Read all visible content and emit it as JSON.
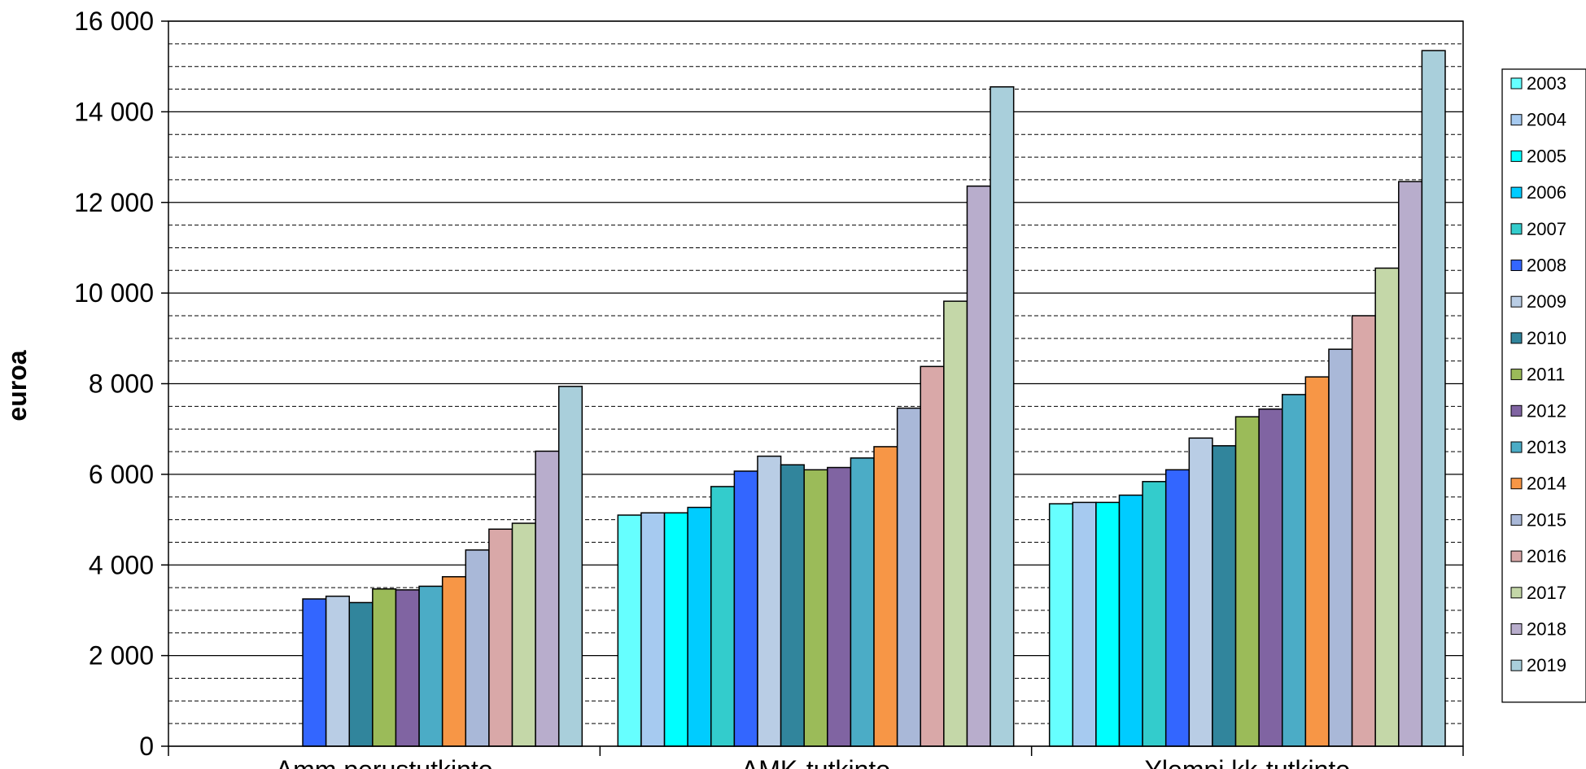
{
  "chart_data": {
    "type": "bar",
    "title": "",
    "xlabel": "",
    "ylabel": "euroa",
    "ylim": [
      0,
      16000
    ],
    "y_ticks": [
      0,
      2000,
      4000,
      6000,
      8000,
      10000,
      12000,
      14000,
      16000
    ],
    "y_tick_labels": [
      "0",
      "2 000",
      "4 000",
      "6 000",
      "8 000",
      "10 000",
      "12 000",
      "14 000",
      "16 000"
    ],
    "y_minor_step": 500,
    "grid": true,
    "legend_position": "right",
    "categories": [
      "Amm.perustutkinto",
      "AMK-tutkinto",
      "Ylempi kk-tutkinto"
    ],
    "series": [
      {
        "name": "2003",
        "color": "#66FFFF",
        "values": [
          null,
          5100,
          5350
        ]
      },
      {
        "name": "2004",
        "color": "#A6CAF0",
        "values": [
          null,
          5150,
          5380
        ]
      },
      {
        "name": "2005",
        "color": "#00FFFF",
        "values": [
          null,
          5150,
          5380
        ]
      },
      {
        "name": "2006",
        "color": "#00CCFF",
        "values": [
          null,
          5270,
          5540
        ]
      },
      {
        "name": "2007",
        "color": "#33CCCC",
        "values": [
          null,
          5730,
          5840
        ]
      },
      {
        "name": "2008",
        "color": "#3366FF",
        "values": [
          3250,
          6070,
          6100
        ]
      },
      {
        "name": "2009",
        "color": "#B9CDE5",
        "values": [
          3310,
          6400,
          6800
        ]
      },
      {
        "name": "2010",
        "color": "#31859C",
        "values": [
          3170,
          6210,
          6630
        ]
      },
      {
        "name": "2011",
        "color": "#9BBB59",
        "values": [
          3470,
          6100,
          7270
        ]
      },
      {
        "name": "2012",
        "color": "#8064A2",
        "values": [
          3450,
          6150,
          7440
        ]
      },
      {
        "name": "2013",
        "color": "#4BACC6",
        "values": [
          3530,
          6360,
          7760
        ]
      },
      {
        "name": "2014",
        "color": "#F79646",
        "values": [
          3740,
          6610,
          8150
        ]
      },
      {
        "name": "2015",
        "color": "#A9B8D8",
        "values": [
          4330,
          7460,
          8760
        ]
      },
      {
        "name": "2016",
        "color": "#D9A8A8",
        "values": [
          4790,
          8380,
          9500
        ]
      },
      {
        "name": "2017",
        "color": "#C4D7A8",
        "values": [
          4920,
          9820,
          10550
        ]
      },
      {
        "name": "2018",
        "color": "#B8ADCC",
        "values": [
          6510,
          12360,
          12460
        ]
      },
      {
        "name": "2019",
        "color": "#A9CFDB",
        "values": [
          7940,
          14550,
          15350
        ]
      }
    ]
  }
}
